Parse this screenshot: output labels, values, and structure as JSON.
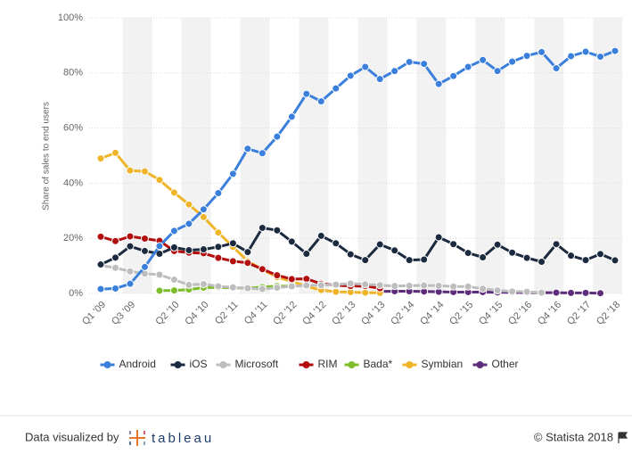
{
  "chart_data": {
    "type": "line",
    "y_label": "Share of sales to end users",
    "categories": [
      "Q1 '09",
      null,
      "Q3 '09",
      null,
      null,
      "Q2 '10",
      null,
      "Q4 '10",
      null,
      "Q2 '11",
      null,
      "Q4 '11",
      null,
      "Q2 '12",
      null,
      "Q4 '12",
      null,
      "Q2 '13",
      null,
      "Q4 '13",
      null,
      "Q2 '14",
      null,
      "Q4 '14",
      null,
      "Q2 '15",
      null,
      "Q4 '15",
      null,
      "Q2 '16",
      null,
      "Q4 '16",
      null,
      "Q2 '17",
      null,
      "Q2 '18"
    ],
    "series": [
      {
        "name": "Android",
        "color": "#3a7fdc",
        "values": [
          1.6,
          1.8,
          3.5,
          9.6,
          17.2,
          22.7,
          25.3,
          30.5,
          36.4,
          43.4,
          52.5,
          50.9,
          56.9,
          64.1,
          72.4,
          69.7,
          74.4,
          79,
          82.2,
          77.8,
          80.7,
          84,
          83.3,
          76,
          78.9,
          82.2,
          84.7,
          80.7,
          84.1,
          86.2,
          87.6,
          81.7,
          86.1,
          87.7,
          85.9,
          88
        ]
      },
      {
        "name": "iOS",
        "color": "#1b2a3e",
        "values": [
          10.5,
          13,
          17.1,
          15.4,
          14.4,
          16.7,
          15.7,
          16,
          16.9,
          18.2,
          15,
          23.8,
          22.9,
          18.8,
          14.4,
          20.9,
          18.2,
          14.2,
          12.1,
          17.8,
          15.6,
          12.1,
          12.3,
          20.4,
          17.9,
          14.7,
          13.1,
          17.7,
          14.8,
          12.9,
          11.5,
          17.9,
          13.7,
          12.1,
          14.3,
          12
        ]
      },
      {
        "name": "Microsoft",
        "color": "#bdbdbd",
        "values": [
          10.2,
          9.3,
          8,
          7.2,
          6.8,
          5,
          3.1,
          3.4,
          2.6,
          2.2,
          1.9,
          1.6,
          2.1,
          2.6,
          2.9,
          3,
          3.2,
          3.6,
          3.3,
          3,
          2.7,
          2.8,
          2.9,
          2.8,
          2.5,
          2.5,
          1.7,
          1.1,
          0.7,
          0.6,
          0.3,
          null,
          null,
          null,
          null,
          null
        ]
      },
      {
        "name": "RIM",
        "color": "#b30d0d",
        "values": [
          20.6,
          19,
          20.7,
          19.9,
          19.1,
          15.4,
          14.8,
          14.6,
          12.9,
          11.7,
          11.1,
          8.8,
          6.6,
          5.2,
          5.3,
          3.5,
          3,
          2.7,
          2.7,
          1.9,
          null,
          null,
          null,
          null,
          null,
          null,
          null,
          null,
          null,
          null,
          null,
          null,
          null,
          null,
          null,
          null
        ]
      },
      {
        "name": "Bada*",
        "color": "#7dbd2b",
        "values": [
          null,
          null,
          null,
          null,
          1,
          1.1,
          1.4,
          2.1,
          2.2,
          2,
          1.9,
          2.3,
          2.7,
          2.6,
          null,
          null,
          null,
          null,
          null,
          null,
          null,
          null,
          null,
          null,
          null,
          null,
          null,
          null,
          null,
          null,
          null,
          null,
          null,
          null,
          null,
          null
        ]
      },
      {
        "name": "Symbian",
        "color": "#f0b428",
        "values": [
          49,
          51,
          44.6,
          44.3,
          41.2,
          36.6,
          32.3,
          27.7,
          22.1,
          16.9,
          11.7,
          8.7,
          5.9,
          4.4,
          2.6,
          1.2,
          0.6,
          0.5,
          0.3,
          0.2,
          null,
          null,
          null,
          null,
          null,
          null,
          null,
          null,
          null,
          null,
          null,
          null,
          null,
          null,
          null,
          null
        ]
      },
      {
        "name": "Other",
        "color": "#5d2c7b",
        "values": [
          null,
          null,
          null,
          null,
          null,
          null,
          null,
          null,
          null,
          null,
          null,
          null,
          null,
          null,
          null,
          null,
          null,
          null,
          null,
          0.7,
          0.8,
          0.8,
          0.7,
          0.6,
          0.5,
          0.5,
          0.5,
          0.4,
          0.4,
          0.3,
          0.3,
          0.3,
          0.2,
          0.2,
          0.1,
          null
        ]
      }
    ],
    "ylim": [
      0,
      100
    ],
    "yticks": [
      {
        "value": 0,
        "label": "0%"
      },
      {
        "value": 20,
        "label": "20%"
      },
      {
        "value": 40,
        "label": "40%"
      },
      {
        "value": 60,
        "label": "60%"
      },
      {
        "value": 80,
        "label": "80%"
      },
      {
        "value": 100,
        "label": "100%"
      }
    ],
    "grid": true
  },
  "footer": {
    "left": "Data visualized by",
    "logo": "tableau",
    "right": "© Statista 2018"
  }
}
